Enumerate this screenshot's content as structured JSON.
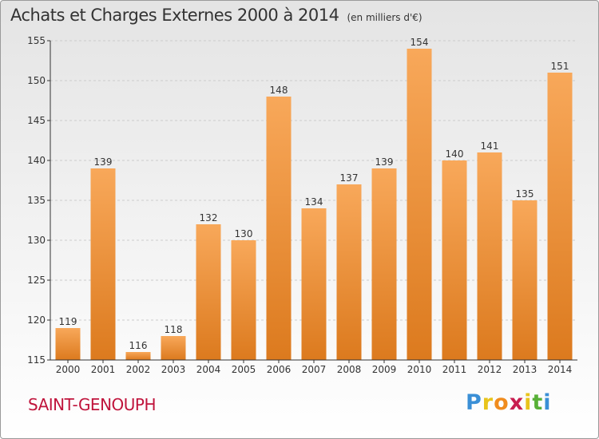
{
  "header": {
    "title": "Achats et Charges Externes 2000 à 2014",
    "unit": "(en milliers d'€)"
  },
  "footer": {
    "place": "SAINT-GENOUPH",
    "logo_letters": [
      "P",
      "r",
      "o",
      "x",
      "i",
      "t",
      "i"
    ],
    "logo_colors": [
      "#3a8fd6",
      "#e8c41c",
      "#f08c1e",
      "#c81e50",
      "#e8c41c",
      "#58b038",
      "#3a8fd6"
    ]
  },
  "colors": {
    "bar_top": "#f8a85a",
    "bar_bottom": "#dc7a1e",
    "axis": "#333333",
    "grid": "#cccccc",
    "label": "#333333",
    "place": "#c0143c"
  },
  "chart_data": {
    "type": "bar",
    "categories": [
      "2000",
      "2001",
      "2002",
      "2003",
      "2004",
      "2005",
      "2006",
      "2007",
      "2008",
      "2009",
      "2010",
      "2011",
      "2012",
      "2013",
      "2014"
    ],
    "values": [
      119,
      139,
      116,
      118,
      132,
      130,
      148,
      134,
      137,
      139,
      154,
      140,
      141,
      135,
      151
    ],
    "title": "Achats et Charges Externes 2000 à 2014",
    "xlabel": "",
    "ylabel": "",
    "ylim": [
      115,
      155
    ],
    "yticks": [
      115,
      120,
      125,
      130,
      135,
      140,
      145,
      150,
      155
    ],
    "grid": true,
    "data_labels": true
  }
}
